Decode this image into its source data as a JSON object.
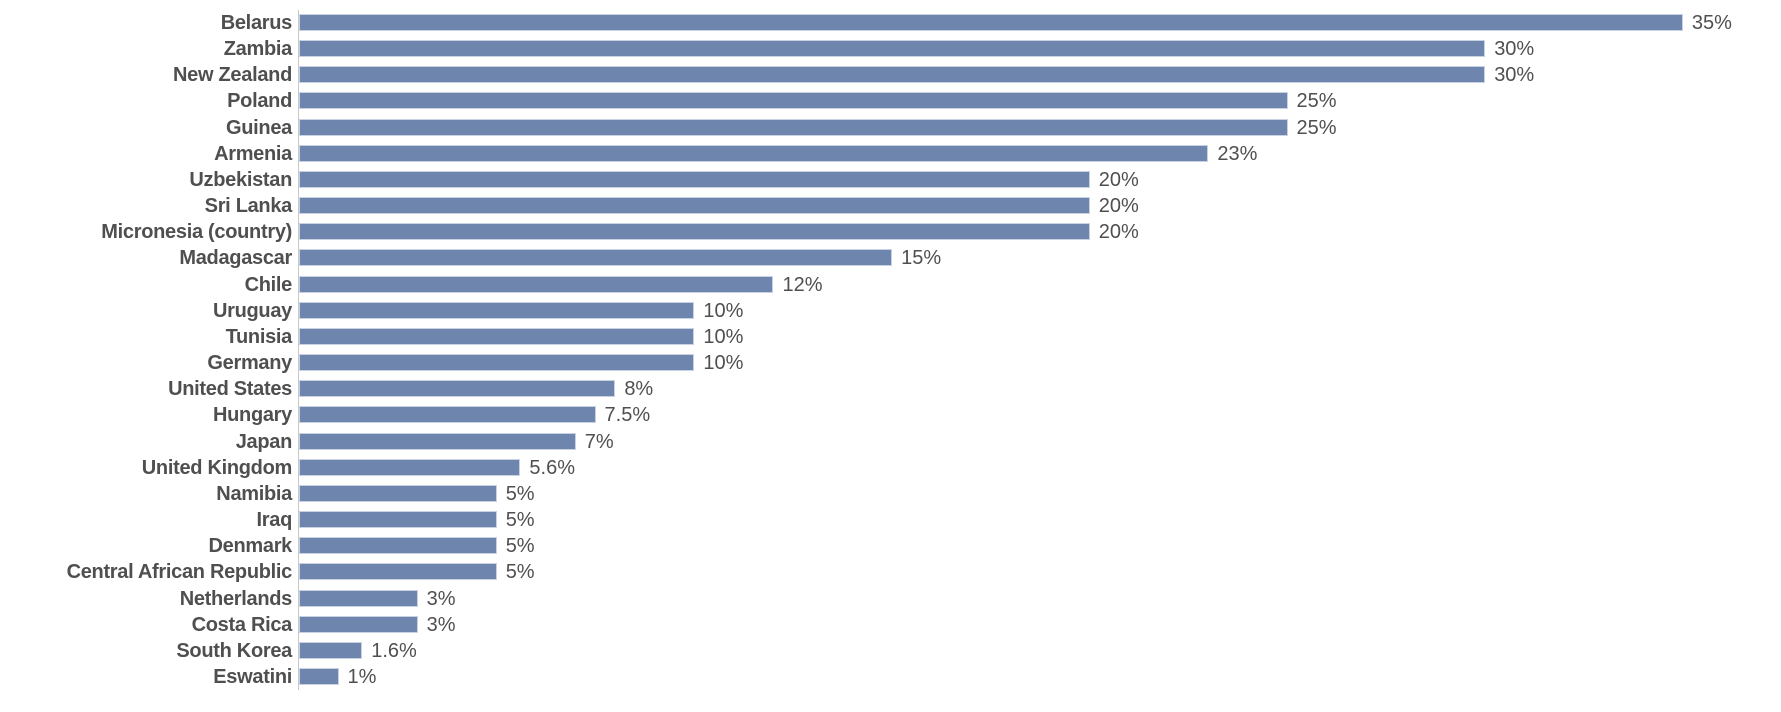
{
  "chart_data": {
    "type": "bar",
    "orientation": "horizontal",
    "title": "",
    "xlabel": "",
    "ylabel": "",
    "xlim": [
      0,
      35
    ],
    "grid": false,
    "legend": null,
    "bar_color": "#6e86ad",
    "text_color": "#4f4f4f",
    "value_suffix": "%",
    "categories": [
      "Belarus",
      "Zambia",
      "New Zealand",
      "Poland",
      "Guinea",
      "Armenia",
      "Uzbekistan",
      "Sri Lanka",
      "Micronesia (country)",
      "Madagascar",
      "Chile",
      "Uruguay",
      "Tunisia",
      "Germany",
      "United States",
      "Hungary",
      "Japan",
      "United Kingdom",
      "Namibia",
      "Iraq",
      "Denmark",
      "Central African Republic",
      "Netherlands",
      "Costa Rica",
      "South Korea",
      "Eswatini"
    ],
    "values": [
      35,
      30,
      30,
      25,
      25,
      23,
      20,
      20,
      20,
      15,
      12,
      10,
      10,
      10,
      8,
      7.5,
      7,
      5.6,
      5,
      5,
      5,
      5,
      3,
      3,
      1.6,
      1
    ],
    "labels": [
      "35%",
      "30%",
      "30%",
      "25%",
      "25%",
      "23%",
      "20%",
      "20%",
      "20%",
      "15%",
      "12%",
      "10%",
      "10%",
      "10%",
      "8%",
      "7.5%",
      "7%",
      "5.6%",
      "5%",
      "5%",
      "5%",
      "5%",
      "3%",
      "3%",
      "1.6%",
      "1%"
    ]
  }
}
